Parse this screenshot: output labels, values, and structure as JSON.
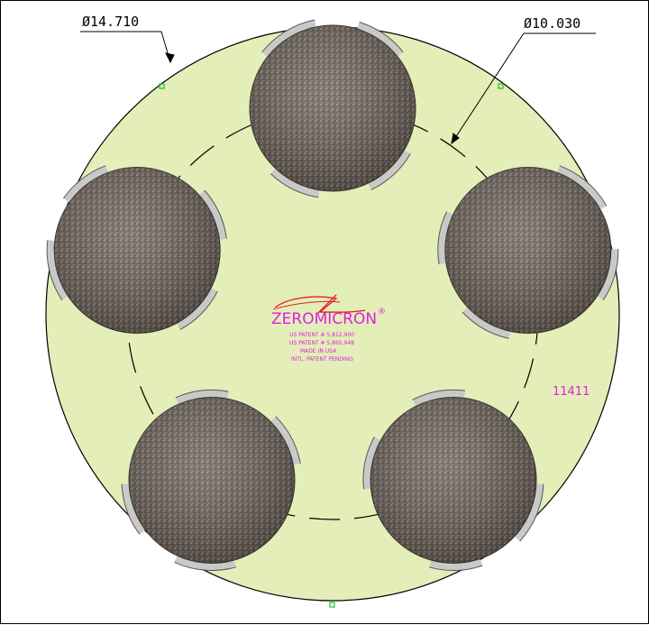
{
  "dimensions": {
    "outer_diameter": "Ø14.710",
    "bolt_circle_diameter": "Ø10.030"
  },
  "logo": {
    "brand_text": "ZEROMICRON",
    "registered_mark": "®"
  },
  "patent_lines": [
    "US PATENT # 5,812,900",
    "US PATENT # 5,865,948",
    "MADE IN USA",
    "INTL. PATENT PENDING"
  ],
  "part_number": "11411",
  "colors": {
    "plate_fill": "#e3eeb8",
    "pad_fill": "#7a6f66",
    "clip_fill": "#c9c9c9",
    "logo_accent": "#e020e0",
    "logo_swoosh": "#e02020",
    "marker_green": "#22c022"
  },
  "pad_count": 5
}
